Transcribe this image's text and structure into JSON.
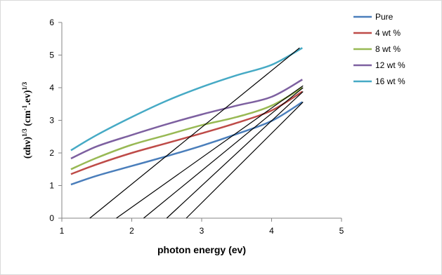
{
  "chart_data": {
    "type": "line",
    "title": "",
    "xlabel": "photon energy (ev)",
    "ylabel": {
      "base1": "(αhν)",
      "sup1": "1/3",
      "base2": " (cm",
      "sup2": "-1",
      "base3": ".ev)",
      "sup3": "1/3"
    },
    "xlim": [
      1,
      5
    ],
    "ylim": [
      0,
      6
    ],
    "x_ticks": [
      "1",
      "2",
      "3",
      "4",
      "5"
    ],
    "y_ticks": [
      "0",
      "1",
      "2",
      "3",
      "4",
      "5",
      "6"
    ],
    "grid": false,
    "legend": "right",
    "series": [
      {
        "name": "Pure",
        "color": "#4a7ebb",
        "x": [
          1.13,
          1.5,
          2.0,
          2.5,
          3.0,
          3.5,
          4.0,
          4.44
        ],
        "y": [
          1.03,
          1.3,
          1.6,
          1.9,
          2.22,
          2.58,
          2.98,
          3.56
        ]
      },
      {
        "name": "4 wt %",
        "color": "#be4b48",
        "x": [
          1.13,
          1.5,
          2.0,
          2.5,
          3.0,
          3.5,
          4.0,
          4.44
        ],
        "y": [
          1.35,
          1.65,
          2.0,
          2.3,
          2.6,
          2.92,
          3.3,
          3.88
        ]
      },
      {
        "name": "8 wt %",
        "color": "#98b954",
        "x": [
          1.13,
          1.5,
          2.0,
          2.5,
          3.0,
          3.5,
          4.0,
          4.44
        ],
        "y": [
          1.5,
          1.85,
          2.25,
          2.55,
          2.85,
          3.1,
          3.45,
          4.0
        ]
      },
      {
        "name": "12 wt %",
        "color": "#7d60a0",
        "x": [
          1.13,
          1.5,
          2.0,
          2.5,
          3.0,
          3.5,
          4.0,
          4.44
        ],
        "y": [
          1.83,
          2.2,
          2.55,
          2.88,
          3.18,
          3.45,
          3.72,
          4.25
        ]
      },
      {
        "name": "16 wt %",
        "color": "#46aac5",
        "x": [
          1.13,
          1.5,
          2.0,
          2.5,
          3.0,
          3.5,
          4.0,
          4.44
        ],
        "y": [
          2.08,
          2.55,
          3.1,
          3.6,
          4.02,
          4.38,
          4.7,
          5.22
        ]
      }
    ],
    "fit_lines": [
      {
        "color": "#000000",
        "x": [
          1.4,
          4.4
        ],
        "y": [
          0,
          5.22
        ]
      },
      {
        "color": "#000000",
        "x": [
          1.78,
          4.45
        ],
        "y": [
          0,
          4.06
        ]
      },
      {
        "name": "",
        "color": "#000000",
        "x": [
          2.17,
          4.45
        ],
        "y": [
          0,
          4.0
        ]
      },
      {
        "color": "#000000",
        "x": [
          2.5,
          4.45
        ],
        "y": [
          0,
          3.88
        ]
      },
      {
        "color": "#000000",
        "x": [
          2.78,
          4.45
        ],
        "y": [
          0,
          3.56
        ]
      }
    ]
  }
}
